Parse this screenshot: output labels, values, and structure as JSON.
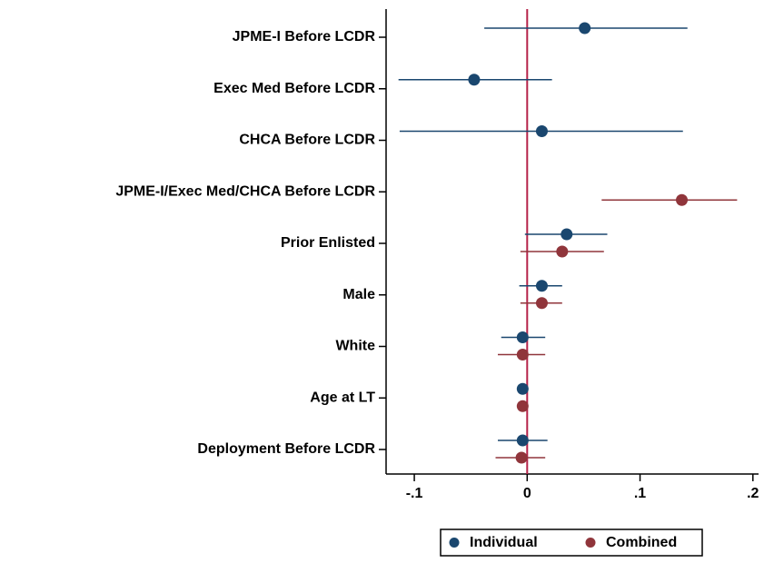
{
  "chart_data": {
    "type": "coefplot",
    "categories": [
      "JPME-I Before LCDR",
      "Exec Med Before LCDR",
      "CHCA Before LCDR",
      "JPME-I/Exec Med/CHCA Before LCDR",
      "Prior Enlisted",
      "Male",
      "White",
      "Age at LT",
      "Deployment Before LCDR"
    ],
    "series": [
      {
        "name": "Individual",
        "color": "#1a476f",
        "values": [
          0.051,
          -0.047,
          0.013,
          null,
          0.035,
          0.013,
          -0.004,
          -0.004,
          -0.004
        ],
        "lower": [
          -0.038,
          -0.114,
          -0.113,
          null,
          -0.002,
          -0.007,
          -0.023,
          -0.009,
          -0.026
        ],
        "upper": [
          0.142,
          0.022,
          0.138,
          null,
          0.071,
          0.031,
          0.016,
          0.001,
          0.018
        ]
      },
      {
        "name": "Combined",
        "color": "#90353b",
        "values": [
          null,
          null,
          null,
          0.137,
          0.031,
          0.013,
          -0.004,
          -0.004,
          -0.005
        ],
        "lower": [
          null,
          null,
          null,
          0.066,
          -0.006,
          -0.006,
          -0.026,
          -0.009,
          -0.028
        ],
        "upper": [
          null,
          null,
          null,
          0.186,
          0.068,
          0.031,
          0.016,
          0.001,
          0.016
        ]
      }
    ],
    "xlim": [
      -0.125,
      0.205
    ],
    "xticks": [
      {
        "value": -0.1,
        "label": "-.1"
      },
      0,
      {
        "value": 0.1,
        "label": ".1"
      },
      {
        "value": 0.2,
        "label": ".2"
      }
    ],
    "reference_line": 0,
    "reference_color": "#b5234a",
    "legend": "bottom"
  }
}
